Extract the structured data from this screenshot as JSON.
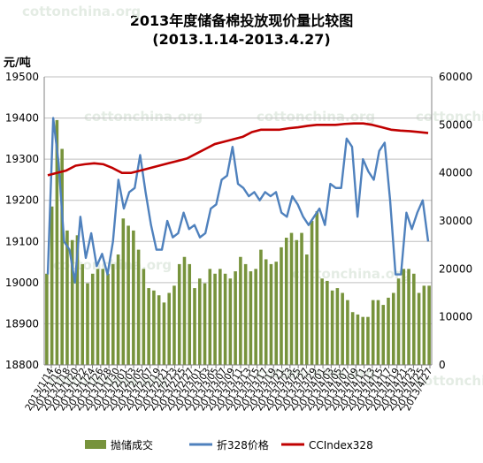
{
  "chart_data": {
    "type": "bar+line",
    "title": "2013年度储备棉投放现价量比较图",
    "subtitle": "(2013.1.14-2013.4.27)",
    "y_left_unit": "元/吨",
    "y_left": {
      "min": 18800,
      "max": 19500,
      "ticks": [
        18800,
        18900,
        19000,
        19100,
        19200,
        19300,
        19400,
        19500
      ]
    },
    "y_right": {
      "min": 0,
      "max": 60000,
      "ticks": [
        0,
        10000,
        20000,
        30000,
        40000,
        50000,
        60000
      ]
    },
    "x_tick_labels": [
      "2013/1/14",
      "2013/1/16",
      "2013/1/18",
      "2013/1/20",
      "2013/1/22",
      "2013/1/24",
      "2013/1/26",
      "2013/1/28",
      "2013/1/30",
      "2013/2/01",
      "2013/2/03",
      "2013/2/05",
      "2013/2/07",
      "2013/2/19",
      "2013/2/21",
      "2013/2/23",
      "2013/2/25",
      "2013/2/27",
      "2013/3/01",
      "2013/3/03",
      "2013/3/05",
      "2013/3/07",
      "2013/3/09",
      "2013/3/11",
      "2013/3/13",
      "2013/3/15",
      "2013/3/17",
      "2013/3/19",
      "2013/3/21",
      "2013/3/23",
      "2013/3/25",
      "2013/3/27",
      "2013/3/29",
      "2013/4/01",
      "2013/4/03",
      "2013/4/05",
      "2013/4/07",
      "2013/4/09",
      "2013/4/11",
      "2013/4/13",
      "2013/4/15",
      "2013/4/17",
      "2013/4/19",
      "2013/4/21",
      "2013/4/23",
      "2013/4/25",
      "2013/4/27"
    ],
    "grid": true,
    "legend_position": "bottom",
    "watermark": "cottonchina.org",
    "colors": {
      "bars": "#77933c",
      "line_price": "#4f81bd",
      "line_index": "#c00000"
    },
    "series": [
      {
        "name": "抛储成交",
        "axis": "right",
        "type": "bar",
        "values": [
          19000,
          33000,
          51000,
          45000,
          28000,
          26000,
          27000,
          21000,
          17000,
          19000,
          20000,
          20000,
          19000,
          21000,
          23000,
          30500,
          29000,
          28000,
          24000,
          20000,
          16000,
          15500,
          14500,
          13000,
          15000,
          16500,
          21000,
          22500,
          21000,
          16000,
          18000,
          17000,
          20000,
          19000,
          20000,
          19000,
          18000,
          19500,
          22500,
          21000,
          19500,
          20000,
          24000,
          22000,
          21000,
          21500,
          24500,
          26500,
          27500,
          26000,
          27500,
          23000,
          30000,
          32000,
          18000,
          17500,
          15500,
          16000,
          15000,
          13500,
          11000,
          10500,
          10000,
          10000,
          13500,
          13500,
          12500,
          14000,
          15000,
          18000,
          20000,
          20000,
          19000,
          15000,
          16500,
          16500
        ]
      },
      {
        "name": "折328价格",
        "axis": "left",
        "type": "line",
        "values": [
          19020,
          19400,
          19290,
          19100,
          19080,
          19000,
          19160,
          19060,
          19120,
          19040,
          19070,
          19020,
          19100,
          19250,
          19180,
          19220,
          19230,
          19310,
          19220,
          19140,
          19080,
          19080,
          19150,
          19110,
          19120,
          19170,
          19130,
          19140,
          19110,
          19120,
          19180,
          19190,
          19250,
          19260,
          19330,
          19240,
          19230,
          19210,
          19220,
          19200,
          19220,
          19210,
          19220,
          19170,
          19160,
          19210,
          19190,
          19160,
          19140,
          19160,
          19180,
          19140,
          19240,
          19230,
          19230,
          19350,
          19330,
          19160,
          19300,
          19270,
          19250,
          19320,
          19340,
          19200,
          19020,
          19020,
          19170,
          19130,
          19170,
          19200,
          19100
        ],
        "note": "read from plot"
      },
      {
        "name": "CCIndex328",
        "axis": "right",
        "type": "line",
        "values": [
          39500,
          40000,
          40500,
          41500,
          41800,
          42000,
          41800,
          41000,
          40000,
          40000,
          40500,
          41000,
          41500,
          42000,
          42500,
          43000,
          44000,
          45000,
          46000,
          46500,
          47000,
          47500,
          48500,
          49000,
          49000,
          49000,
          49300,
          49500,
          49800,
          50000,
          50000,
          50000,
          50200,
          50300,
          50300,
          50000,
          49500,
          49000,
          48800,
          48700,
          48500,
          48300
        ]
      }
    ]
  },
  "legend": {
    "bar_label": "抛储成交",
    "price_label": "折328价格",
    "index_label": "CCIndex328"
  }
}
